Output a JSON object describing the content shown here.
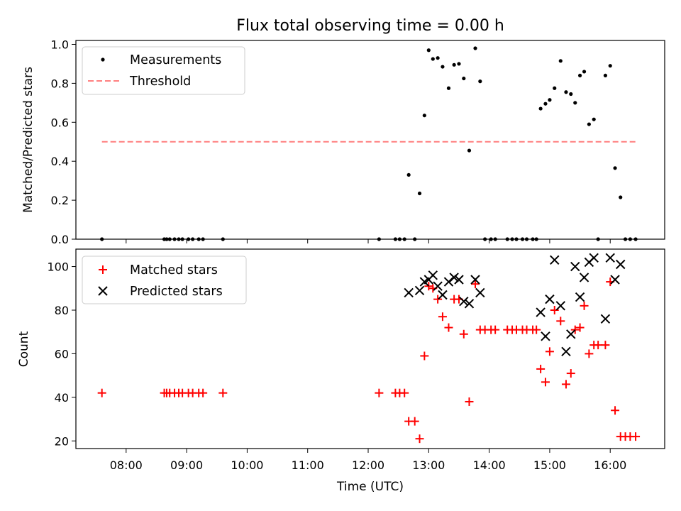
{
  "chart_data": [
    {
      "type": "scatter",
      "title": "Flux total observing time = 0.00 h",
      "xlabel": "",
      "ylabel": "Matched/Predicted stars",
      "xlim": [
        7.17,
        16.9
      ],
      "ylim": [
        0.0,
        1.02
      ],
      "yticks": [
        0.0,
        0.2,
        0.4,
        0.6,
        0.8,
        1.0
      ],
      "ytick_labels": [
        "0.0",
        "0.2",
        "0.4",
        "0.6",
        "0.8",
        "1.0"
      ],
      "legend_position": "top-left",
      "series": [
        {
          "name": "Measurements",
          "marker": "dot",
          "color": "#000000",
          "points": [
            [
              7.6,
              0.0
            ],
            [
              8.63,
              0.0
            ],
            [
              8.67,
              0.0
            ],
            [
              8.72,
              0.0
            ],
            [
              8.8,
              0.0
            ],
            [
              8.87,
              0.0
            ],
            [
              8.93,
              0.0
            ],
            [
              9.03,
              0.0
            ],
            [
              9.1,
              0.0
            ],
            [
              9.2,
              0.0
            ],
            [
              9.27,
              0.0
            ],
            [
              9.6,
              0.0
            ],
            [
              12.18,
              0.0
            ],
            [
              12.45,
              0.0
            ],
            [
              12.52,
              0.0
            ],
            [
              12.6,
              0.0
            ],
            [
              12.67,
              0.33
            ],
            [
              12.77,
              0.0
            ],
            [
              12.85,
              0.235
            ],
            [
              12.93,
              0.635
            ],
            [
              13.0,
              0.97
            ],
            [
              13.07,
              0.925
            ],
            [
              13.15,
              0.93
            ],
            [
              13.23,
              0.885
            ],
            [
              13.33,
              0.775
            ],
            [
              13.42,
              0.895
            ],
            [
              13.5,
              0.9
            ],
            [
              13.58,
              0.825
            ],
            [
              13.67,
              0.455
            ],
            [
              13.77,
              0.98
            ],
            [
              13.85,
              0.81
            ],
            [
              13.93,
              0.0
            ],
            [
              14.03,
              0.0
            ],
            [
              14.1,
              0.0
            ],
            [
              14.3,
              0.0
            ],
            [
              14.38,
              0.0
            ],
            [
              14.45,
              0.0
            ],
            [
              14.55,
              0.0
            ],
            [
              14.62,
              0.0
            ],
            [
              14.72,
              0.0
            ],
            [
              14.78,
              0.0
            ],
            [
              14.85,
              0.67
            ],
            [
              14.93,
              0.695
            ],
            [
              15.0,
              0.715
            ],
            [
              15.08,
              0.775
            ],
            [
              15.18,
              0.915
            ],
            [
              15.27,
              0.755
            ],
            [
              15.35,
              0.745
            ],
            [
              15.42,
              0.7
            ],
            [
              15.5,
              0.84
            ],
            [
              15.57,
              0.86
            ],
            [
              15.65,
              0.59
            ],
            [
              15.73,
              0.615
            ],
            [
              15.8,
              0.0
            ],
            [
              15.92,
              0.84
            ],
            [
              16.0,
              0.89
            ],
            [
              16.08,
              0.365
            ],
            [
              16.17,
              0.215
            ],
            [
              16.25,
              0.0
            ],
            [
              16.33,
              0.0
            ],
            [
              16.42,
              0.0
            ]
          ]
        },
        {
          "name": "Threshold",
          "style": "dashed",
          "color": "#ff7f7f",
          "points": [
            [
              7.6,
              0.5
            ],
            [
              16.45,
              0.5
            ]
          ]
        }
      ]
    },
    {
      "type": "scatter",
      "title": "",
      "xlabel": "Time (UTC)",
      "ylabel": "Count",
      "xlim": [
        7.17,
        16.9
      ],
      "ylim": [
        16.5,
        108
      ],
      "yticks": [
        20,
        40,
        60,
        80,
        100
      ],
      "ytick_labels": [
        "20",
        "40",
        "60",
        "80",
        "100"
      ],
      "xticks": [
        8,
        9,
        10,
        11,
        12,
        13,
        14,
        15,
        16
      ],
      "xtick_labels": [
        "08:00",
        "09:00",
        "10:00",
        "11:00",
        "12:00",
        "13:00",
        "14:00",
        "15:00",
        "16:00"
      ],
      "legend_position": "top-left",
      "series": [
        {
          "name": "Matched stars",
          "marker": "plus",
          "color": "#ff0000",
          "points": [
            [
              7.6,
              42
            ],
            [
              8.63,
              42
            ],
            [
              8.67,
              42
            ],
            [
              8.72,
              42
            ],
            [
              8.8,
              42
            ],
            [
              8.87,
              42
            ],
            [
              8.93,
              42
            ],
            [
              9.03,
              42
            ],
            [
              9.1,
              42
            ],
            [
              9.2,
              42
            ],
            [
              9.27,
              42
            ],
            [
              9.6,
              42
            ],
            [
              12.18,
              42
            ],
            [
              12.45,
              42
            ],
            [
              12.52,
              42
            ],
            [
              12.6,
              42
            ],
            [
              12.67,
              29
            ],
            [
              12.77,
              29
            ],
            [
              12.85,
              21
            ],
            [
              12.93,
              59
            ],
            [
              13.0,
              91
            ],
            [
              13.07,
              90
            ],
            [
              13.15,
              85
            ],
            [
              13.23,
              77
            ],
            [
              13.33,
              72
            ],
            [
              13.42,
              85
            ],
            [
              13.5,
              85
            ],
            [
              13.58,
              69
            ],
            [
              13.67,
              38
            ],
            [
              13.77,
              92
            ],
            [
              13.85,
              71
            ],
            [
              13.93,
              71
            ],
            [
              14.03,
              71
            ],
            [
              14.1,
              71
            ],
            [
              14.3,
              71
            ],
            [
              14.38,
              71
            ],
            [
              14.45,
              71
            ],
            [
              14.55,
              71
            ],
            [
              14.62,
              71
            ],
            [
              14.72,
              71
            ],
            [
              14.78,
              71
            ],
            [
              14.85,
              53
            ],
            [
              14.93,
              47
            ],
            [
              15.0,
              61
            ],
            [
              15.08,
              80
            ],
            [
              15.18,
              75
            ],
            [
              15.27,
              46
            ],
            [
              15.35,
              51
            ],
            [
              15.42,
              71
            ],
            [
              15.5,
              72
            ],
            [
              15.57,
              82
            ],
            [
              15.65,
              60
            ],
            [
              15.73,
              64
            ],
            [
              15.8,
              64
            ],
            [
              15.92,
              64
            ],
            [
              16.0,
              93
            ],
            [
              16.08,
              34
            ],
            [
              16.17,
              22
            ],
            [
              16.25,
              22
            ],
            [
              16.33,
              22
            ],
            [
              16.42,
              22
            ]
          ]
        },
        {
          "name": "Predicted stars",
          "marker": "x",
          "color": "#000000",
          "points": [
            [
              12.67,
              88
            ],
            [
              12.85,
              89
            ],
            [
              12.93,
              93
            ],
            [
              13.0,
              94
            ],
            [
              13.07,
              96
            ],
            [
              13.15,
              91
            ],
            [
              13.23,
              87
            ],
            [
              13.33,
              93
            ],
            [
              13.42,
              95
            ],
            [
              13.5,
              94
            ],
            [
              13.58,
              84
            ],
            [
              13.67,
              83
            ],
            [
              13.77,
              94
            ],
            [
              13.85,
              88
            ],
            [
              14.85,
              79
            ],
            [
              14.93,
              68
            ],
            [
              15.0,
              85
            ],
            [
              15.08,
              103
            ],
            [
              15.18,
              82
            ],
            [
              15.27,
              61
            ],
            [
              15.35,
              69
            ],
            [
              15.42,
              100
            ],
            [
              15.5,
              86
            ],
            [
              15.57,
              95
            ],
            [
              15.65,
              102
            ],
            [
              15.73,
              104
            ],
            [
              15.92,
              76
            ],
            [
              16.0,
              104
            ],
            [
              16.08,
              94
            ],
            [
              16.17,
              101
            ]
          ]
        }
      ]
    }
  ]
}
